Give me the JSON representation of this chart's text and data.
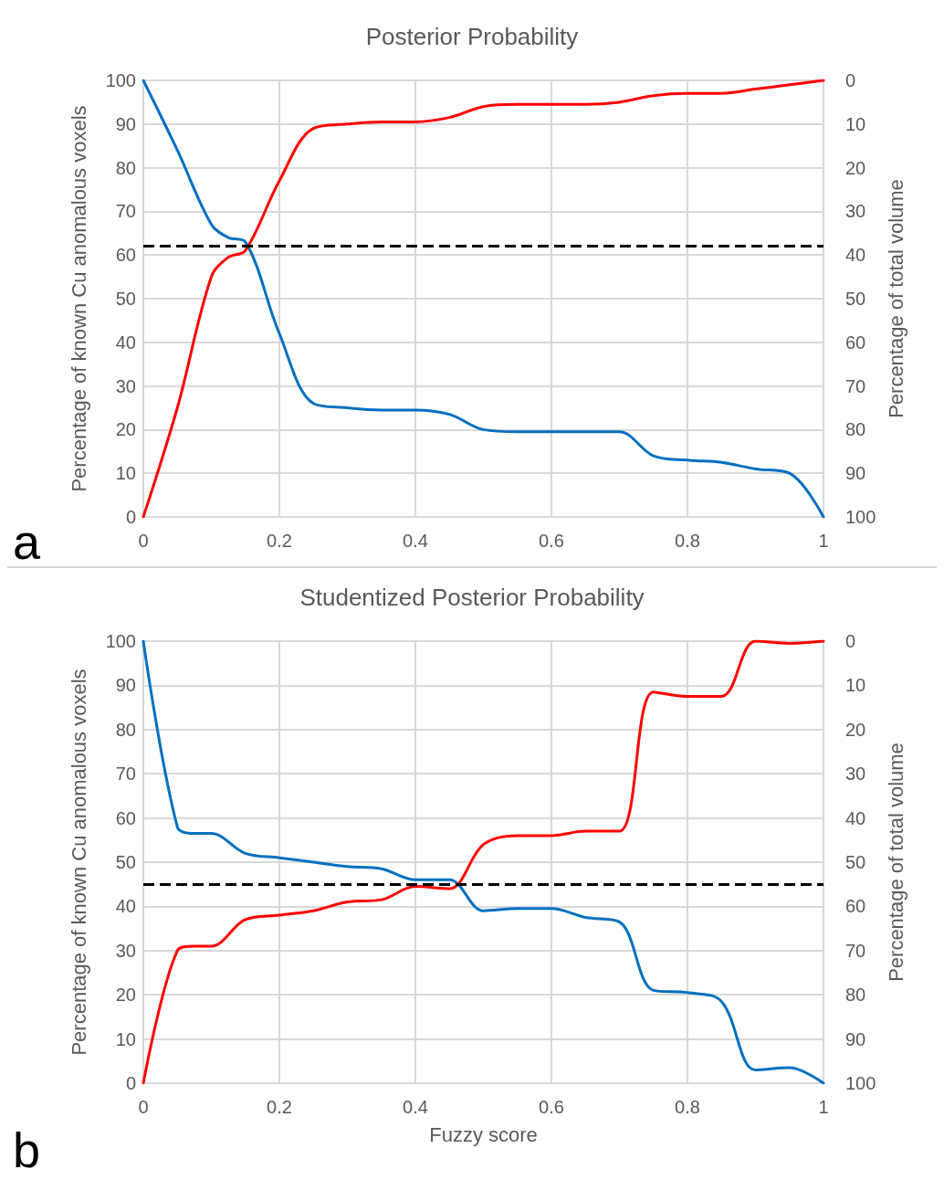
{
  "chart_data": [
    {
      "type": "line",
      "title": "Posterior Probability",
      "ylabel": "Percentage of known Cu anomalous voxels",
      "y2label": "Percentage of total volume",
      "annotations": [
        "a"
      ],
      "x": [
        0,
        0.05,
        0.1,
        0.125,
        0.15,
        0.2,
        0.25,
        0.3,
        0.35,
        0.4,
        0.45,
        0.5,
        0.55,
        0.6,
        0.65,
        0.7,
        0.75,
        0.8,
        0.85,
        0.9,
        0.95,
        1
      ],
      "series": [
        {
          "color": "#0070c0",
          "values": [
            100,
            84,
            67,
            64,
            63,
            42,
            26,
            25,
            24.5,
            24.5,
            23.5,
            20,
            19.5,
            19.5,
            19.5,
            19.5,
            14,
            13,
            12.5,
            11,
            10,
            0
          ]
        },
        {
          "color": "#ff0000",
          "axis": "y2",
          "values": [
            100,
            75,
            45,
            40.5,
            39,
            23,
            11,
            10,
            9.5,
            9.5,
            8.5,
            6,
            5.5,
            5.5,
            5.5,
            5,
            3.5,
            3,
            3,
            2,
            1,
            0
          ]
        }
      ],
      "xlim": [
        0,
        1
      ],
      "xticks": [
        0,
        0.2,
        0.4,
        0.6,
        0.8,
        1
      ],
      "ylim": [
        0,
        100
      ],
      "yticks": [
        0,
        10,
        20,
        30,
        40,
        50,
        60,
        70,
        80,
        90,
        100
      ],
      "y2lim": [
        100,
        0
      ],
      "y2ticks": [
        0,
        10,
        20,
        30,
        40,
        50,
        60,
        70,
        80,
        90,
        100
      ],
      "ref_lines": [
        {
          "axis": "y",
          "value": 62,
          "color": "#000000",
          "line_style": "dashed"
        }
      ],
      "grid": true,
      "marker": "none",
      "line_style": "solid"
    },
    {
      "type": "line",
      "title": "Studentized Posterior Probability",
      "xlabel": "Fuzzy score",
      "ylabel": "Percentage of known Cu anomalous voxels",
      "y2label": "Percentage of total volume",
      "annotations": [
        "b"
      ],
      "x": [
        0,
        0.05,
        0.075,
        0.1,
        0.15,
        0.2,
        0.25,
        0.3,
        0.35,
        0.4,
        0.45,
        0.5,
        0.55,
        0.6,
        0.65,
        0.7,
        0.75,
        0.8,
        0.85,
        0.9,
        0.95,
        1
      ],
      "series": [
        {
          "color": "#0070c0",
          "values": [
            100,
            58,
            56.5,
            56.5,
            52,
            51,
            50,
            49,
            48.5,
            46,
            46,
            39,
            39.5,
            39.5,
            37.5,
            36.5,
            21,
            20.5,
            18.5,
            3,
            3.5,
            0
          ]
        },
        {
          "color": "#ff0000",
          "axis": "y2",
          "values": [
            100,
            70,
            69,
            69,
            63,
            62,
            61,
            59,
            58.5,
            55.5,
            56,
            46,
            44,
            44,
            43,
            43,
            11.5,
            12.5,
            12.5,
            0,
            0.5,
            0
          ]
        }
      ],
      "xlim": [
        0,
        1
      ],
      "xticks": [
        0,
        0.2,
        0.4,
        0.6,
        0.8,
        1
      ],
      "ylim": [
        0,
        100
      ],
      "yticks": [
        0,
        10,
        20,
        30,
        40,
        50,
        60,
        70,
        80,
        90,
        100
      ],
      "y2lim": [
        100,
        0
      ],
      "y2ticks": [
        0,
        10,
        20,
        30,
        40,
        50,
        60,
        70,
        80,
        90,
        100
      ],
      "ref_lines": [
        {
          "axis": "y",
          "value": 45,
          "color": "#000000",
          "line_style": "dashed"
        }
      ],
      "grid": true,
      "marker": "none",
      "line_style": "solid"
    }
  ]
}
